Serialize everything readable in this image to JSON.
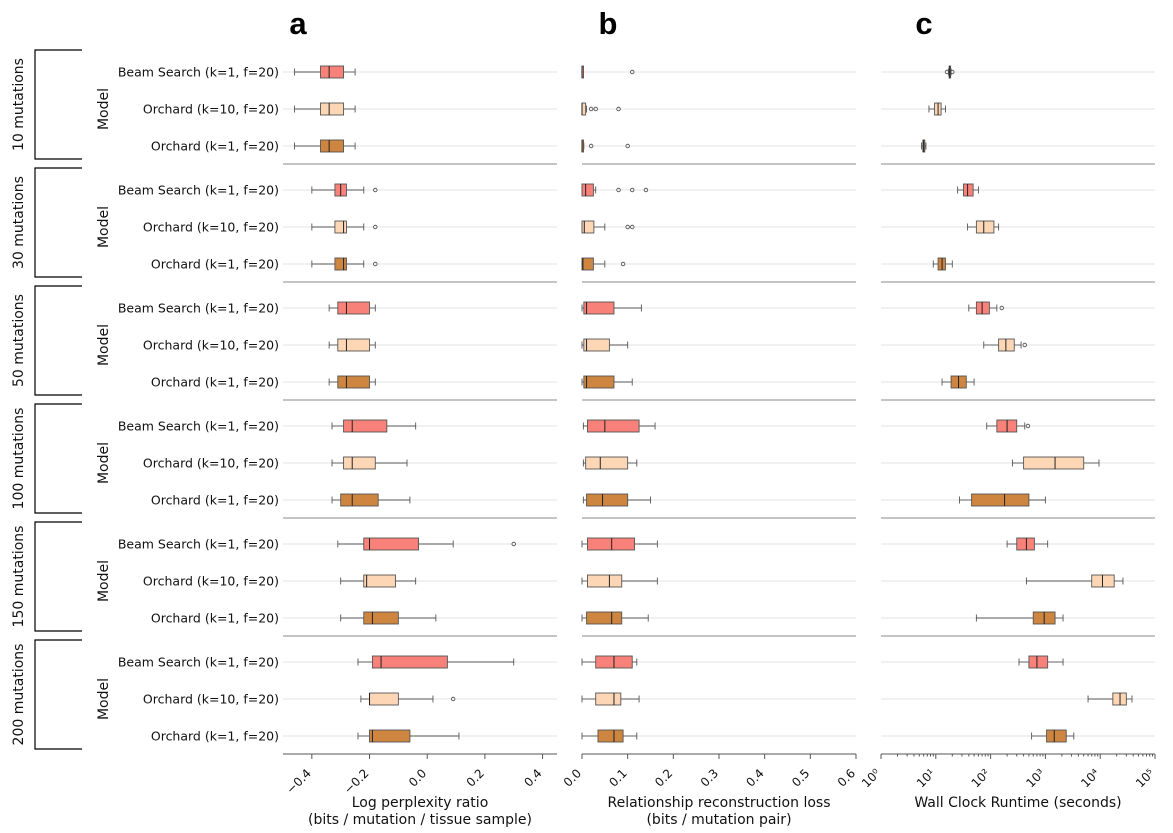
{
  "panels": [
    {
      "letter": "a",
      "xlabel_line1": "Log perplexity ratio",
      "xlabel_line2": "(bits / mutation / tissue sample)"
    },
    {
      "letter": "b",
      "xlabel_line1": "Relationship reconstruction loss",
      "xlabel_line2": "(bits / mutation pair)"
    },
    {
      "letter": "c",
      "xlabel_line1": "Wall Clock Runtime (seconds)",
      "xlabel_line2": ""
    }
  ],
  "y_axis_label": "Model",
  "models": [
    "Beam Search (k=1, f=20)",
    "Orchard (k=10, f=20)",
    "Orchard (k=1, f=20)"
  ],
  "colors": {
    "beam": "#f8817a",
    "orchard_k10": "#fdd7b5",
    "orchard_k1": "#cd8540"
  },
  "chart_data": [
    {
      "type": "box",
      "panel": "a",
      "xlabel": "Log perplexity ratio (bits / mutation / tissue sample)",
      "xlim": [
        -0.5,
        0.45
      ],
      "xticks": [
        "−0.4",
        "−0.2",
        "0.0",
        "0.2",
        "0.4"
      ],
      "xtick_values": [
        -0.4,
        -0.2,
        0.0,
        0.2,
        0.4
      ],
      "groups": [
        {
          "label": "10 mutations",
          "boxes": [
            {
              "model": "Beam Search (k=1, f=20)",
              "wlo": -0.46,
              "q1": -0.37,
              "med": -0.34,
              "q3": -0.29,
              "whi": -0.25,
              "outliers": []
            },
            {
              "model": "Orchard (k=10, f=20)",
              "wlo": -0.46,
              "q1": -0.37,
              "med": -0.34,
              "q3": -0.29,
              "whi": -0.25,
              "outliers": []
            },
            {
              "model": "Orchard (k=1, f=20)",
              "wlo": -0.46,
              "q1": -0.37,
              "med": -0.34,
              "q3": -0.29,
              "whi": -0.25,
              "outliers": []
            }
          ]
        },
        {
          "label": "30 mutations",
          "boxes": [
            {
              "model": "Beam Search (k=1, f=20)",
              "wlo": -0.4,
              "q1": -0.32,
              "med": -0.3,
              "q3": -0.28,
              "whi": -0.22,
              "outliers": [
                -0.18
              ]
            },
            {
              "model": "Orchard (k=10, f=20)",
              "wlo": -0.4,
              "q1": -0.32,
              "med": -0.29,
              "q3": -0.28,
              "whi": -0.22,
              "outliers": [
                -0.18
              ]
            },
            {
              "model": "Orchard (k=1, f=20)",
              "wlo": -0.4,
              "q1": -0.32,
              "med": -0.29,
              "q3": -0.28,
              "whi": -0.22,
              "outliers": [
                -0.18
              ]
            }
          ]
        },
        {
          "label": "50 mutations",
          "boxes": [
            {
              "model": "Beam Search (k=1, f=20)",
              "wlo": -0.34,
              "q1": -0.31,
              "med": -0.28,
              "q3": -0.2,
              "whi": -0.18,
              "outliers": []
            },
            {
              "model": "Orchard (k=10, f=20)",
              "wlo": -0.34,
              "q1": -0.31,
              "med": -0.28,
              "q3": -0.2,
              "whi": -0.18,
              "outliers": []
            },
            {
              "model": "Orchard (k=1, f=20)",
              "wlo": -0.34,
              "q1": -0.31,
              "med": -0.28,
              "q3": -0.2,
              "whi": -0.18,
              "outliers": []
            }
          ]
        },
        {
          "label": "100 mutations",
          "boxes": [
            {
              "model": "Beam Search (k=1, f=20)",
              "wlo": -0.33,
              "q1": -0.29,
              "med": -0.26,
              "q3": -0.14,
              "whi": -0.04,
              "outliers": []
            },
            {
              "model": "Orchard (k=10, f=20)",
              "wlo": -0.33,
              "q1": -0.29,
              "med": -0.26,
              "q3": -0.18,
              "whi": -0.07,
              "outliers": []
            },
            {
              "model": "Orchard (k=1, f=20)",
              "wlo": -0.33,
              "q1": -0.3,
              "med": -0.26,
              "q3": -0.17,
              "whi": -0.06,
              "outliers": []
            }
          ]
        },
        {
          "label": "150 mutations",
          "boxes": [
            {
              "model": "Beam Search (k=1, f=20)",
              "wlo": -0.31,
              "q1": -0.22,
              "med": -0.2,
              "q3": -0.03,
              "whi": 0.09,
              "outliers": [
                0.3
              ]
            },
            {
              "model": "Orchard (k=10, f=20)",
              "wlo": -0.3,
              "q1": -0.22,
              "med": -0.21,
              "q3": -0.11,
              "whi": -0.04,
              "outliers": []
            },
            {
              "model": "Orchard (k=1, f=20)",
              "wlo": -0.3,
              "q1": -0.22,
              "med": -0.19,
              "q3": -0.1,
              "whi": 0.03,
              "outliers": []
            }
          ]
        },
        {
          "label": "200 mutations",
          "boxes": [
            {
              "model": "Beam Search (k=1, f=20)",
              "wlo": -0.24,
              "q1": -0.19,
              "med": -0.16,
              "q3": 0.07,
              "whi": 0.3,
              "outliers": []
            },
            {
              "model": "Orchard (k=10, f=20)",
              "wlo": -0.23,
              "q1": -0.2,
              "med": -0.2,
              "q3": -0.1,
              "whi": 0.02,
              "outliers": [
                0.09
              ]
            },
            {
              "model": "Orchard (k=1, f=20)",
              "wlo": -0.24,
              "q1": -0.2,
              "med": -0.19,
              "q3": -0.06,
              "whi": 0.11,
              "outliers": []
            }
          ]
        }
      ]
    },
    {
      "type": "box",
      "panel": "b",
      "xlabel": "Relationship reconstruction loss (bits / mutation pair)",
      "xlim": [
        0.0,
        0.6
      ],
      "xticks": [
        "0.0",
        "0.1",
        "0.2",
        "0.3",
        "0.4",
        "0.5",
        "0.6"
      ],
      "xtick_values": [
        0.0,
        0.1,
        0.2,
        0.3,
        0.4,
        0.5,
        0.6
      ],
      "groups": [
        {
          "label": "10 mutations",
          "boxes": [
            {
              "model": "Beam Search (k=1, f=20)",
              "wlo": 0.0,
              "q1": 0.0,
              "med": 0.0,
              "q3": 0.0,
              "whi": 0.0,
              "outliers": [
                0.11
              ]
            },
            {
              "model": "Orchard (k=10, f=20)",
              "wlo": 0.0,
              "q1": 0.0,
              "med": 0.0,
              "q3": 0.008,
              "whi": 0.01,
              "outliers": [
                0.02,
                0.03,
                0.08
              ]
            },
            {
              "model": "Orchard (k=1, f=20)",
              "wlo": 0.0,
              "q1": 0.0,
              "med": 0.0,
              "q3": 0.002,
              "whi": 0.004,
              "outliers": [
                0.02,
                0.1
              ]
            }
          ]
        },
        {
          "label": "30 mutations",
          "boxes": [
            {
              "model": "Beam Search (k=1, f=20)",
              "wlo": 0.0,
              "q1": 0.0,
              "med": 0.008,
              "q3": 0.025,
              "whi": 0.03,
              "outliers": [
                0.08,
                0.11,
                0.14
              ]
            },
            {
              "model": "Orchard (k=10, f=20)",
              "wlo": 0.0,
              "q1": 0.0,
              "med": 0.005,
              "q3": 0.026,
              "whi": 0.05,
              "outliers": [
                0.1,
                0.11
              ]
            },
            {
              "model": "Orchard (k=1, f=20)",
              "wlo": 0.0,
              "q1": 0.0,
              "med": 0.002,
              "q3": 0.025,
              "whi": 0.05,
              "outliers": [
                0.09
              ]
            }
          ]
        },
        {
          "label": "50 mutations",
          "boxes": [
            {
              "model": "Beam Search (k=1, f=20)",
              "wlo": 0.0,
              "q1": 0.004,
              "med": 0.01,
              "q3": 0.07,
              "whi": 0.13,
              "outliers": []
            },
            {
              "model": "Orchard (k=10, f=20)",
              "wlo": 0.0,
              "q1": 0.004,
              "med": 0.01,
              "q3": 0.06,
              "whi": 0.1,
              "outliers": []
            },
            {
              "model": "Orchard (k=1, f=20)",
              "wlo": 0.0,
              "q1": 0.004,
              "med": 0.01,
              "q3": 0.07,
              "whi": 0.11,
              "outliers": []
            }
          ]
        },
        {
          "label": "100 mutations",
          "boxes": [
            {
              "model": "Beam Search (k=1, f=20)",
              "wlo": 0.003,
              "q1": 0.012,
              "med": 0.05,
              "q3": 0.125,
              "whi": 0.16,
              "outliers": []
            },
            {
              "model": "Orchard (k=10, f=20)",
              "wlo": 0.003,
              "q1": 0.008,
              "med": 0.04,
              "q3": 0.1,
              "whi": 0.12,
              "outliers": []
            },
            {
              "model": "Orchard (k=1, f=20)",
              "wlo": 0.003,
              "q1": 0.01,
              "med": 0.045,
              "q3": 0.1,
              "whi": 0.15,
              "outliers": []
            }
          ]
        },
        {
          "label": "150 mutations",
          "boxes": [
            {
              "model": "Beam Search (k=1, f=20)",
              "wlo": 0.0,
              "q1": 0.012,
              "med": 0.065,
              "q3": 0.115,
              "whi": 0.165,
              "outliers": []
            },
            {
              "model": "Orchard (k=10, f=20)",
              "wlo": 0.0,
              "q1": 0.012,
              "med": 0.06,
              "q3": 0.087,
              "whi": 0.165,
              "outliers": []
            },
            {
              "model": "Orchard (k=1, f=20)",
              "wlo": 0.0,
              "q1": 0.01,
              "med": 0.065,
              "q3": 0.087,
              "whi": 0.145,
              "outliers": []
            }
          ]
        },
        {
          "label": "200 mutations",
          "boxes": [
            {
              "model": "Beam Search (k=1, f=20)",
              "wlo": 0.0,
              "q1": 0.03,
              "med": 0.07,
              "q3": 0.11,
              "whi": 0.12,
              "outliers": []
            },
            {
              "model": "Orchard (k=10, f=20)",
              "wlo": 0.0,
              "q1": 0.03,
              "med": 0.07,
              "q3": 0.085,
              "whi": 0.125,
              "outliers": []
            },
            {
              "model": "Orchard (k=1, f=20)",
              "wlo": 0.0,
              "q1": 0.035,
              "med": 0.07,
              "q3": 0.09,
              "whi": 0.12,
              "outliers": []
            }
          ]
        }
      ]
    },
    {
      "type": "box",
      "panel": "c",
      "scale": "log10",
      "xlabel": "Wall Clock Runtime (seconds)",
      "xlim_log10": [
        0,
        5
      ],
      "xticks": [
        "10⁰",
        "10¹",
        "10²",
        "10³",
        "10⁴",
        "10⁵"
      ],
      "xtick_values_log10": [
        0,
        1,
        2,
        3,
        4,
        5
      ],
      "groups": [
        {
          "label": "10 mutations",
          "boxes": [
            {
              "model": "Beam Search (k=1, f=20)",
              "wlo": 17,
              "q1": 17.5,
              "med": 18,
              "q3": 18.5,
              "whi": 19,
              "outliers": [
                16,
                20
              ]
            },
            {
              "model": "Orchard (k=10, f=20)",
              "wlo": 7.5,
              "q1": 9.5,
              "med": 11,
              "q3": 12.5,
              "whi": 15,
              "outliers": []
            },
            {
              "model": "Orchard (k=1, f=20)",
              "wlo": 5.5,
              "q1": 5.8,
              "med": 6.0,
              "q3": 6.3,
              "whi": 6.6,
              "outliers": []
            }
          ]
        },
        {
          "label": "30 mutations",
          "boxes": [
            {
              "model": "Beam Search (k=1, f=20)",
              "wlo": 25,
              "q1": 32,
              "med": 38,
              "q3": 48,
              "whi": 60,
              "outliers": []
            },
            {
              "model": "Orchard (k=10, f=20)",
              "wlo": 38,
              "q1": 55,
              "med": 75,
              "q3": 115,
              "whi": 140,
              "outliers": []
            },
            {
              "model": "Orchard (k=1, f=20)",
              "wlo": 9,
              "q1": 11,
              "med": 13,
              "q3": 15,
              "whi": 20,
              "outliers": []
            }
          ]
        },
        {
          "label": "50 mutations",
          "boxes": [
            {
              "model": "Beam Search (k=1, f=20)",
              "wlo": 40,
              "q1": 55,
              "med": 70,
              "q3": 95,
              "whi": 130,
              "outliers": [
                160
              ]
            },
            {
              "model": "Orchard (k=10, f=20)",
              "wlo": 75,
              "q1": 140,
              "med": 190,
              "q3": 270,
              "whi": 360,
              "outliers": [
                420
              ]
            },
            {
              "model": "Orchard (k=1, f=20)",
              "wlo": 13,
              "q1": 19,
              "med": 26,
              "q3": 36,
              "whi": 50,
              "outliers": []
            }
          ]
        },
        {
          "label": "100 mutations",
          "boxes": [
            {
              "model": "Beam Search (k=1, f=20)",
              "wlo": 85,
              "q1": 130,
              "med": 200,
              "q3": 300,
              "whi": 420,
              "outliers": [
                480
              ]
            },
            {
              "model": "Orchard (k=10, f=20)",
              "wlo": 250,
              "q1": 400,
              "med": 1500,
              "q3": 5000,
              "whi": 9500,
              "outliers": []
            },
            {
              "model": "Orchard (k=1, f=20)",
              "wlo": 27,
              "q1": 45,
              "med": 180,
              "q3": 500,
              "whi": 1000,
              "outliers": []
            }
          ]
        },
        {
          "label": "150 mutations",
          "boxes": [
            {
              "model": "Beam Search (k=1, f=20)",
              "wlo": 200,
              "q1": 300,
              "med": 450,
              "q3": 630,
              "whi": 1100,
              "outliers": []
            },
            {
              "model": "Orchard (k=10, f=20)",
              "wlo": 450,
              "q1": 7000,
              "med": 11000,
              "q3": 18000,
              "whi": 26000,
              "outliers": []
            },
            {
              "model": "Orchard (k=1, f=20)",
              "wlo": 55,
              "q1": 600,
              "med": 950,
              "q3": 1500,
              "whi": 2100,
              "outliers": []
            }
          ]
        },
        {
          "label": "200 mutations",
          "boxes": [
            {
              "model": "Beam Search (k=1, f=20)",
              "wlo": 330,
              "q1": 500,
              "med": 700,
              "q3": 1100,
              "whi": 2100,
              "outliers": []
            },
            {
              "model": "Orchard (k=10, f=20)",
              "wlo": 6000,
              "q1": 17000,
              "med": 23000,
              "q3": 30000,
              "whi": 38000,
              "outliers": []
            },
            {
              "model": "Orchard (k=1, f=20)",
              "wlo": 560,
              "q1": 1050,
              "med": 1450,
              "q3": 2400,
              "whi": 3300,
              "outliers": []
            }
          ]
        }
      ]
    }
  ]
}
